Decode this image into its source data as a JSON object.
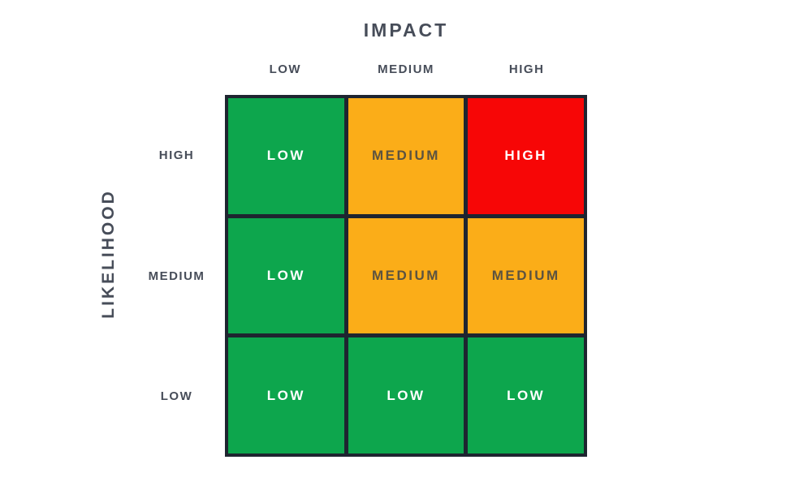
{
  "chart_data": {
    "type": "heatmap",
    "title": "IMPACT",
    "xlabel": "IMPACT",
    "ylabel": "LIKELIHOOD",
    "x_categories": [
      "LOW",
      "MEDIUM",
      "HIGH"
    ],
    "y_categories": [
      "HIGH",
      "MEDIUM",
      "LOW"
    ],
    "cells": [
      [
        "LOW",
        "MEDIUM",
        "HIGH"
      ],
      [
        "LOW",
        "MEDIUM",
        "MEDIUM"
      ],
      [
        "LOW",
        "LOW",
        "LOW"
      ]
    ],
    "legend_position": "none",
    "grid": "on"
  },
  "colors": {
    "border": "#1E2530",
    "heading_text": "#474D59",
    "levels": {
      "low": {
        "bg": "#0DA64D",
        "text": "#FFFFFF"
      },
      "medium": {
        "bg": "#FBAD18",
        "text": "#5C5340"
      },
      "high": {
        "bg": "#F70606",
        "text": "#FFFFFF"
      }
    }
  }
}
